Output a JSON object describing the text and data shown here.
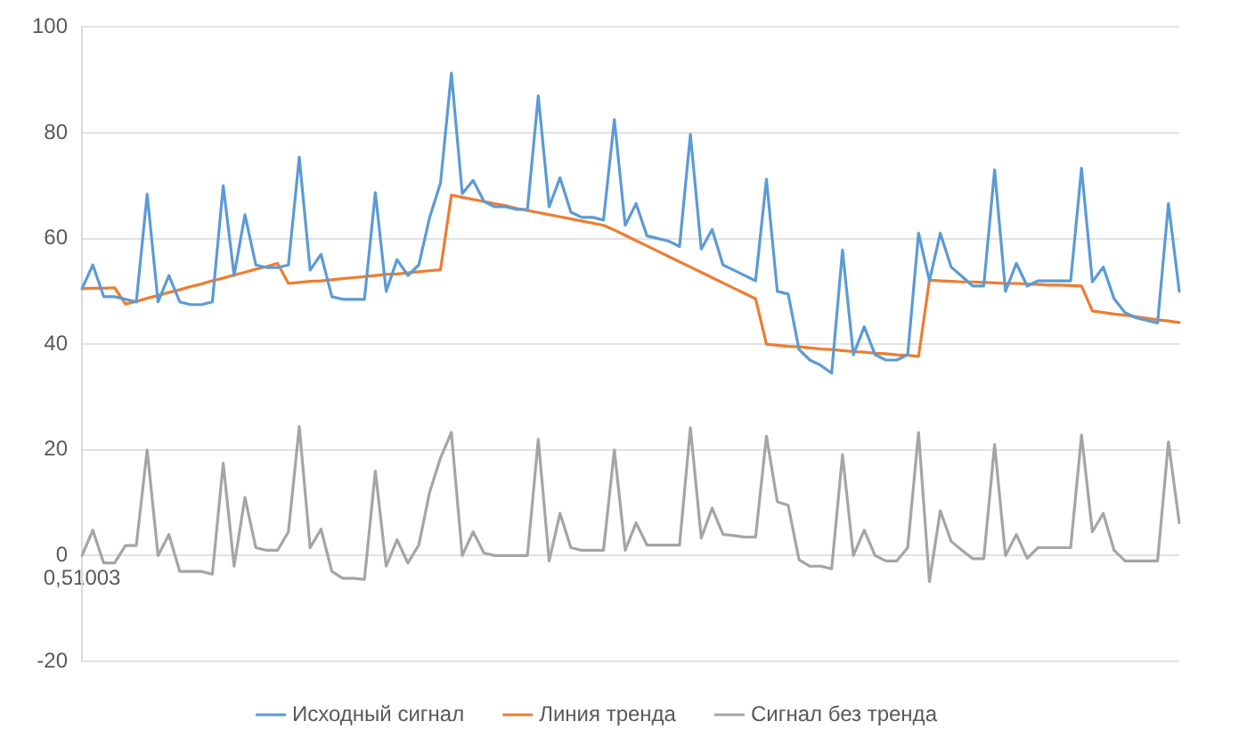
{
  "chart_data": {
    "type": "line",
    "categories": [
      "0,51003",
      null,
      null,
      null,
      null,
      null,
      null,
      null,
      null,
      null,
      null,
      null,
      null,
      null,
      null,
      null,
      null,
      null,
      null,
      null,
      null,
      null,
      null,
      null,
      null,
      null,
      null,
      null,
      null,
      null,
      null,
      null,
      null,
      null,
      null,
      null,
      null,
      null,
      null,
      null,
      null,
      null,
      null,
      null,
      null,
      null,
      null,
      null,
      null,
      null,
      null,
      null,
      null,
      null,
      null,
      null,
      null,
      null,
      null,
      null,
      null,
      null,
      null,
      null,
      null,
      null,
      null,
      null,
      null,
      null,
      null,
      null,
      null,
      null,
      null,
      null,
      null,
      null,
      null,
      null,
      null,
      null,
      null,
      null,
      null,
      null,
      null,
      null,
      null,
      null,
      null,
      null,
      null,
      null,
      null,
      null,
      null,
      null,
      null,
      null,
      null,
      null
    ],
    "series": [
      {
        "name": "Исходный сигнал",
        "color": "#5b9bd5",
        "values": [
          50.5,
          55,
          49,
          49,
          48.5,
          48,
          68.4,
          48,
          53,
          48,
          47.5,
          47.5,
          48,
          70,
          53,
          64.5,
          55,
          54.5,
          54.5,
          55,
          75.4,
          54,
          57,
          49,
          48.5,
          48.5,
          48.5,
          68.7,
          50,
          56,
          53,
          55,
          64,
          70.5,
          91.3,
          68.5,
          71,
          67,
          66,
          66,
          65.5,
          65.5,
          87,
          66,
          71.5,
          65,
          64,
          64,
          63.5,
          82.5,
          62.5,
          66.6,
          60.5,
          60,
          59.5,
          58.5,
          79.7,
          58,
          61.7,
          55,
          54,
          53,
          52,
          71.2,
          50,
          49.5,
          39,
          37,
          36,
          34.5,
          57.8,
          38,
          43.3,
          38,
          37,
          37,
          38,
          61,
          52,
          61,
          54.6,
          52.8,
          51,
          51,
          73,
          50,
          55.3,
          51,
          52,
          52,
          52,
          52,
          73.3,
          51.8,
          54.6,
          48.6,
          46,
          45,
          44.5,
          44,
          66.6,
          50
        ]
      },
      {
        "name": "Линия тренда",
        "color": "#ed7d31",
        "values": [
          50.5,
          50.6,
          50.6,
          50.7,
          47.6,
          48.1,
          48.7,
          49.2,
          49.8,
          50.3,
          50.9,
          51.4,
          52,
          52.5,
          53.1,
          53.6,
          54.2,
          54.7,
          55.3,
          51.5,
          51.7,
          51.9,
          52,
          52.2,
          52.4,
          52.6,
          52.8,
          53,
          53.2,
          53.3,
          53.5,
          53.7,
          53.9,
          54.1,
          68.2,
          67.8,
          67.4,
          67,
          66.6,
          66.2,
          65.7,
          65.3,
          64.9,
          64.5,
          64.1,
          63.7,
          63.3,
          62.9,
          62.5,
          61.6,
          60.6,
          59.6,
          58.6,
          57.6,
          56.6,
          55.6,
          54.6,
          53.6,
          52.6,
          51.6,
          50.6,
          49.6,
          48.6,
          40,
          39.8,
          39.6,
          39.5,
          39.3,
          39.1,
          39,
          38.8,
          38.6,
          38.5,
          38.3,
          38.2,
          38,
          37.9,
          37.7,
          52.1,
          52,
          51.9,
          51.8,
          51.8,
          51.7,
          51.6,
          51.5,
          51.5,
          51.4,
          51.3,
          51.2,
          51.2,
          51.1,
          51,
          46.3,
          46,
          45.7,
          45.5,
          45.2,
          44.9,
          44.6,
          44.4,
          44.1
        ]
      },
      {
        "name": "Сигнал без тренда",
        "color": "#a5a5a5",
        "values": [
          0,
          4.8,
          -1.4,
          -1.4,
          1.9,
          1.9,
          20,
          0,
          4,
          -3,
          -3,
          -3,
          -3.5,
          17.5,
          -2,
          11,
          1.5,
          1,
          1,
          4.5,
          24.4,
          1.5,
          5,
          -3,
          -4.3,
          -4.3,
          -4.5,
          16,
          -2,
          3,
          -1.4,
          2,
          12,
          18.5,
          23.3,
          0,
          4.5,
          0.5,
          0,
          0,
          0,
          0,
          22,
          -1,
          8,
          1.5,
          1,
          1,
          1,
          20,
          1,
          6.2,
          2,
          2,
          2,
          2,
          24.2,
          3.3,
          9,
          4,
          3.8,
          3.5,
          3.5,
          22.6,
          10.2,
          9.5,
          -0.8,
          -2,
          -2,
          -2.5,
          19.1,
          0,
          4.8,
          0,
          -1,
          -1,
          1.5,
          23.3,
          -4.9,
          8.5,
          2.7,
          1,
          -0.6,
          -0.6,
          21,
          0,
          4,
          -0.5,
          1.5,
          1.5,
          1.5,
          1.5,
          22.8,
          4.5,
          8,
          1,
          -1,
          -1,
          -1,
          -1,
          21.5,
          6.2
        ]
      }
    ],
    "ylim": [
      -20,
      100
    ],
    "yticks": [
      -20,
      0,
      20,
      40,
      60,
      80,
      100
    ],
    "grid": "y",
    "legend": "bottom"
  }
}
